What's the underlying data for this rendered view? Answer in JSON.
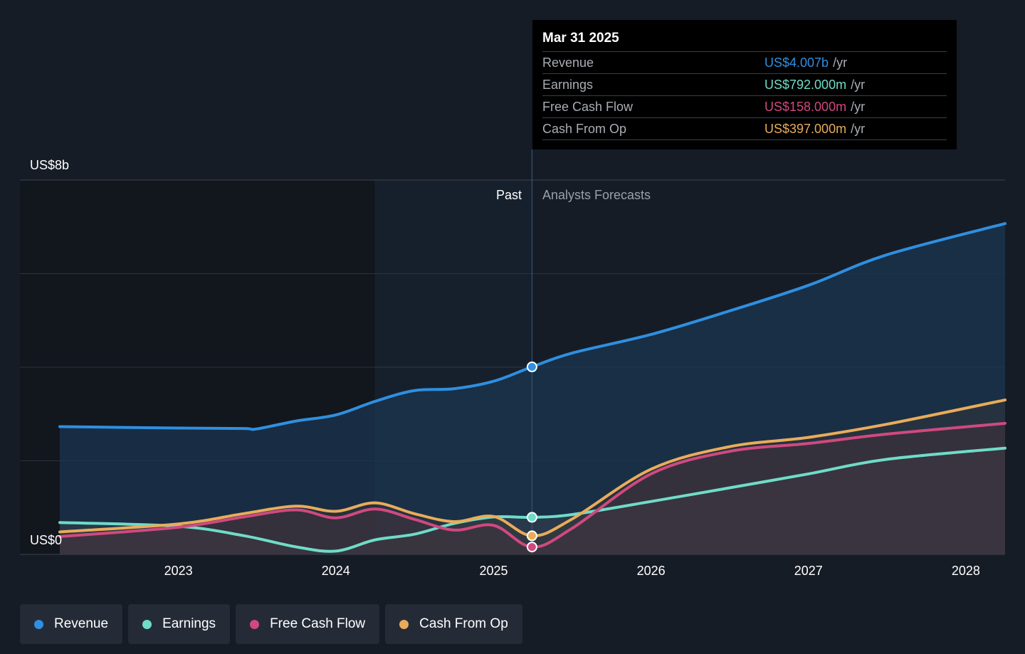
{
  "colors": {
    "revenue": "#2f8fe0",
    "earnings": "#6fdcc8",
    "free_cash_flow": "#d0497f",
    "cash_from_op": "#e9ac5b",
    "background": "#161c26"
  },
  "tooltip": {
    "date": "Mar 31 2025",
    "rows": [
      {
        "label": "Revenue",
        "value": "US$4.007b",
        "unit": "/yr"
      },
      {
        "label": "Earnings",
        "value": "US$792.000m",
        "unit": "/yr"
      },
      {
        "label": "Free Cash Flow",
        "value": "US$158.000m",
        "unit": "/yr"
      },
      {
        "label": "Cash From Op",
        "value": "US$397.000m",
        "unit": "/yr"
      }
    ]
  },
  "legend": [
    {
      "label": "Revenue",
      "color": "#2f8fe0"
    },
    {
      "label": "Earnings",
      "color": "#6fdcc8"
    },
    {
      "label": "Free Cash Flow",
      "color": "#d0497f"
    },
    {
      "label": "Cash From Op",
      "color": "#e9ac5b"
    }
  ],
  "chart_data": {
    "type": "area",
    "y_max_label": "US$8b",
    "y_min_label": "US$0",
    "past_label": "Past",
    "forecast_label": "Analysts Forecasts",
    "ylim": [
      0,
      8
    ],
    "yticks": [
      0,
      2,
      4,
      6,
      8
    ],
    "xlim": [
      "2022-04-01",
      "2028-04-01"
    ],
    "x_ticks": [
      "2023",
      "2024",
      "2025",
      "2026",
      "2027",
      "2028"
    ],
    "divider_date": "2025-03-31",
    "highlight_start": "2024-03-31",
    "series": [
      {
        "name": "Revenue",
        "points": [
          [
            "2022-04-01",
            2.73
          ],
          [
            "2023-01-01",
            2.7
          ],
          [
            "2023-06-01",
            2.69
          ],
          [
            "2023-07-01",
            2.68
          ],
          [
            "2023-10-01",
            2.85
          ],
          [
            "2024-01-01",
            2.98
          ],
          [
            "2024-04-01",
            3.27
          ],
          [
            "2024-07-01",
            3.5
          ],
          [
            "2024-10-01",
            3.54
          ],
          [
            "2025-01-01",
            3.7
          ],
          [
            "2025-03-31",
            4.007
          ],
          [
            "2025-07-01",
            4.3
          ],
          [
            "2026-01-01",
            4.7
          ],
          [
            "2026-07-01",
            5.2
          ],
          [
            "2027-01-01",
            5.75
          ],
          [
            "2027-07-01",
            6.4
          ],
          [
            "2028-04-01",
            7.07
          ]
        ]
      },
      {
        "name": "Earnings",
        "points": [
          [
            "2022-04-01",
            0.68
          ],
          [
            "2023-01-01",
            0.6
          ],
          [
            "2023-06-01",
            0.4
          ],
          [
            "2023-10-01",
            0.16
          ],
          [
            "2024-01-01",
            0.07
          ],
          [
            "2024-04-01",
            0.31
          ],
          [
            "2024-07-01",
            0.43
          ],
          [
            "2024-10-01",
            0.66
          ],
          [
            "2025-01-01",
            0.8
          ],
          [
            "2025-03-31",
            0.792
          ],
          [
            "2025-07-01",
            0.85
          ],
          [
            "2026-01-01",
            1.13
          ],
          [
            "2026-07-01",
            1.42
          ],
          [
            "2027-01-01",
            1.72
          ],
          [
            "2027-07-01",
            2.03
          ],
          [
            "2028-04-01",
            2.27
          ]
        ]
      },
      {
        "name": "Free Cash Flow",
        "points": [
          [
            "2022-04-01",
            0.38
          ],
          [
            "2023-01-01",
            0.58
          ],
          [
            "2023-06-01",
            0.8
          ],
          [
            "2023-10-01",
            0.95
          ],
          [
            "2024-01-01",
            0.78
          ],
          [
            "2024-04-01",
            0.97
          ],
          [
            "2024-07-01",
            0.75
          ],
          [
            "2024-10-01",
            0.52
          ],
          [
            "2025-01-01",
            0.62
          ],
          [
            "2025-03-31",
            0.158
          ],
          [
            "2025-07-01",
            0.55
          ],
          [
            "2026-01-01",
            1.72
          ],
          [
            "2026-07-01",
            2.2
          ],
          [
            "2027-01-01",
            2.37
          ],
          [
            "2027-07-01",
            2.57
          ],
          [
            "2028-04-01",
            2.8
          ]
        ]
      },
      {
        "name": "Cash From Op",
        "points": [
          [
            "2022-04-01",
            0.48
          ],
          [
            "2023-01-01",
            0.65
          ],
          [
            "2023-06-01",
            0.87
          ],
          [
            "2023-10-01",
            1.03
          ],
          [
            "2024-01-01",
            0.92
          ],
          [
            "2024-04-01",
            1.1
          ],
          [
            "2024-07-01",
            0.87
          ],
          [
            "2024-10-01",
            0.7
          ],
          [
            "2025-01-01",
            0.81
          ],
          [
            "2025-03-31",
            0.397
          ],
          [
            "2025-07-01",
            0.75
          ],
          [
            "2026-01-01",
            1.82
          ],
          [
            "2026-07-01",
            2.3
          ],
          [
            "2027-01-01",
            2.5
          ],
          [
            "2027-07-01",
            2.78
          ],
          [
            "2028-04-01",
            3.3
          ]
        ]
      }
    ]
  }
}
